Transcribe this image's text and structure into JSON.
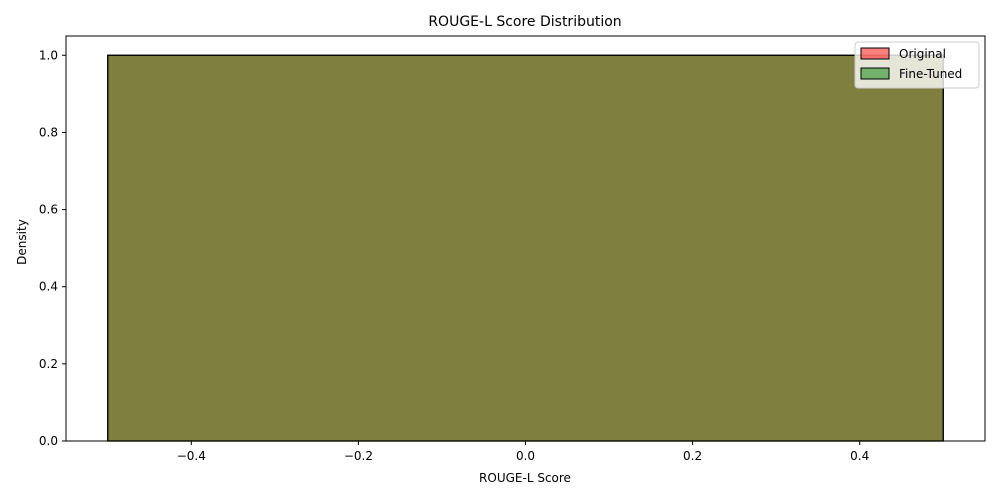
{
  "chart_data": {
    "type": "bar",
    "title": "ROUGE-L Score Distribution",
    "xlabel": "ROUGE-L Score",
    "ylabel": "Density",
    "xlim": [
      -0.55,
      0.55
    ],
    "ylim": [
      0,
      1.05
    ],
    "xticks": [
      -0.4,
      -0.2,
      0.0,
      0.2,
      0.4
    ],
    "xtick_labels": [
      "−0.4",
      "−0.2",
      "0.0",
      "0.2",
      "0.4"
    ],
    "yticks": [
      0.0,
      0.2,
      0.4,
      0.6,
      0.8,
      1.0
    ],
    "ytick_labels": [
      "0.0",
      "0.2",
      "0.4",
      "0.6",
      "0.8",
      "1.0"
    ],
    "grid": false,
    "legend_position": "top-right",
    "series": [
      {
        "name": "Original",
        "color": "#ff0000",
        "alpha": 0.5,
        "bins": [
          {
            "x0": -0.5,
            "x1": 0.5,
            "density": 1.0
          }
        ]
      },
      {
        "name": "Fine-Tuned",
        "color": "#008000",
        "alpha": 0.5,
        "bins": [
          {
            "x0": -0.5,
            "x1": 0.5,
            "density": 1.0
          }
        ]
      }
    ]
  }
}
